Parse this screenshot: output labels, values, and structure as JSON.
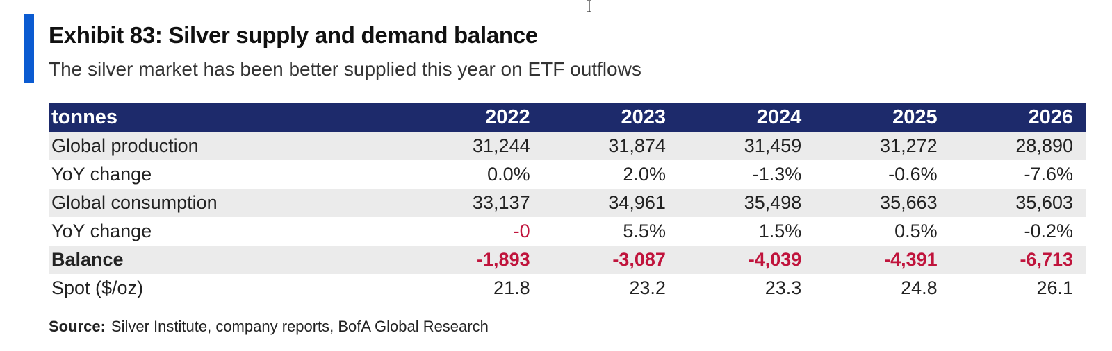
{
  "title": "Exhibit 83: Silver supply and demand balance",
  "subtitle": "The silver market has been better supplied this year on ETF outflows",
  "table": {
    "header": [
      "tonnes",
      "2022",
      "2023",
      "2024",
      "2025",
      "2026"
    ],
    "rows": [
      {
        "label": "Global production",
        "values": [
          "31,244",
          "31,874",
          "31,459",
          "31,272",
          "28,890"
        ]
      },
      {
        "label": "YoY change",
        "values": [
          "0.0%",
          "2.0%",
          "-1.3%",
          "-0.6%",
          "-7.6%"
        ]
      },
      {
        "label": "Global consumption",
        "values": [
          "33,137",
          "34,961",
          "35,498",
          "35,663",
          "35,603"
        ]
      },
      {
        "label": "YoY change",
        "values": [
          "-0",
          "5.5%",
          "1.5%",
          "0.5%",
          "-0.2%"
        ]
      },
      {
        "label": "Balance",
        "values": [
          "-1,893",
          "-3,087",
          "-4,039",
          "-4,391",
          "-6,713"
        ]
      },
      {
        "label": "Spot ($/oz)",
        "values": [
          "21.8",
          "23.2",
          "23.3",
          "24.8",
          "26.1"
        ]
      }
    ]
  },
  "source": {
    "label": "Source:",
    "text": "Silver Institute, company reports, BofA Global Research"
  },
  "colors": {
    "accent_bar": "#0b5bd1",
    "header_bg": "#1d2a6b",
    "negative": "#c0143c",
    "shaded_row": "#ebebeb"
  },
  "icons": {
    "cursor": "text-cursor-icon"
  }
}
